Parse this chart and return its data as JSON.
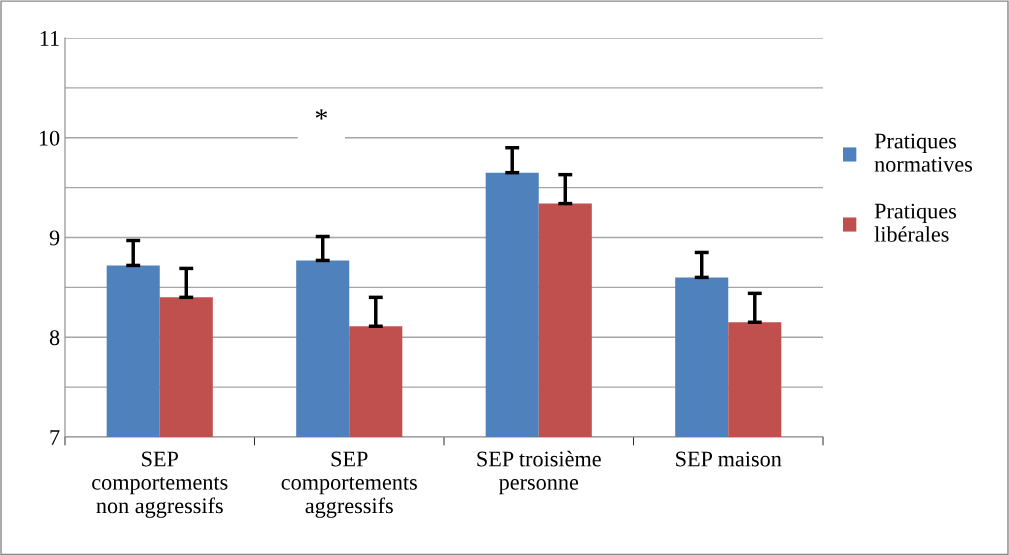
{
  "chart_data": {
    "type": "bar",
    "categories": [
      "SEP\ncomportements\nnon aggressifs",
      "SEP\ncomportements\naggressifs",
      "SEP troisième\npersonne",
      "SEP maison"
    ],
    "series": [
      {
        "name": "Pratiques\nnormatives",
        "color": "#4f81bd",
        "values": [
          8.72,
          8.77,
          9.65,
          8.6
        ],
        "errors": [
          [
            8.72,
            8.97
          ],
          [
            8.77,
            9.01
          ],
          [
            9.65,
            9.9
          ],
          [
            8.6,
            8.85
          ]
        ]
      },
      {
        "name": "Pratiques\nlibérales",
        "color": "#c0504d",
        "values": [
          8.4,
          8.11,
          9.34,
          8.15
        ],
        "errors": [
          [
            8.4,
            8.69
          ],
          [
            8.11,
            8.4
          ],
          [
            9.34,
            9.63
          ],
          [
            8.15,
            8.44
          ]
        ]
      }
    ],
    "ylim": [
      7,
      11
    ],
    "yticks": [
      7,
      {
        "value": 7.5,
        "label": null
      },
      8,
      {
        "value": 8.5,
        "label": null
      },
      9,
      {
        "value": 9.5,
        "label": null
      },
      10,
      {
        "value": 10.5,
        "label": null
      },
      11
    ],
    "grid": "y",
    "legend": "right",
    "annotations": [
      "*"
    ]
  }
}
